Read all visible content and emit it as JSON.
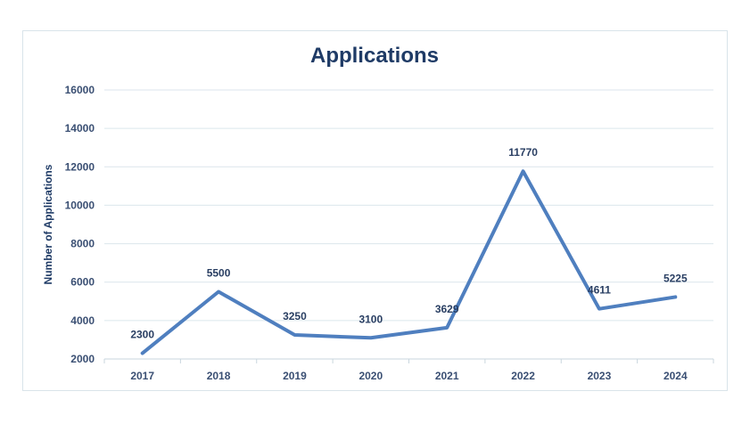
{
  "chart_data": {
    "type": "line",
    "title": "Applications",
    "xlabel": "",
    "ylabel": "Number of Applications",
    "categories": [
      "2017",
      "2018",
      "2019",
      "2020",
      "2021",
      "2022",
      "2023",
      "2024"
    ],
    "values": [
      2300,
      5500,
      3250,
      3100,
      3629,
      11770,
      4611,
      5225
    ],
    "data_labels": [
      "2300",
      "5500",
      "3250",
      "3100",
      "3629",
      "11770",
      "4611",
      "5225"
    ],
    "yticks": [
      "2000",
      "4000",
      "6000",
      "8000",
      "10000",
      "12000",
      "14000",
      "16000"
    ],
    "ylim": [
      2000,
      16000
    ],
    "grid": true,
    "legend": "none",
    "line_color": "#4f7fbf",
    "title_color": "#1f3b66"
  }
}
